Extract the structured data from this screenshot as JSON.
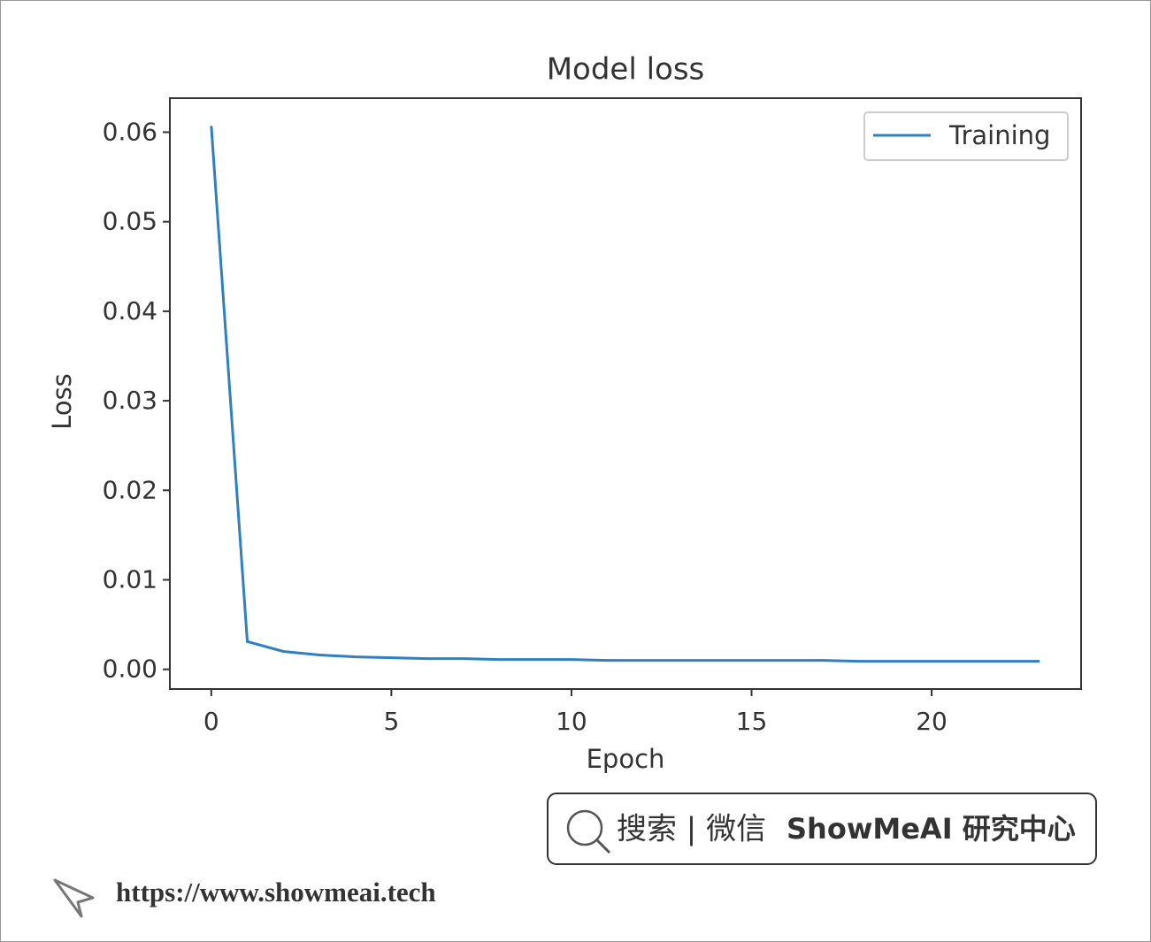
{
  "chart_data": {
    "type": "line",
    "title": "Model loss",
    "x_label": "Epoch",
    "y_label": "Loss",
    "x": [
      0,
      1,
      2,
      3,
      4,
      5,
      6,
      7,
      8,
      9,
      10,
      11,
      12,
      13,
      14,
      15,
      16,
      17,
      18,
      19,
      20,
      21,
      22,
      23
    ],
    "series": [
      {
        "name": "Training",
        "color": "#2f7fc1",
        "values": [
          0.0607,
          0.0031,
          0.002,
          0.0016,
          0.0014,
          0.0013,
          0.0012,
          0.0012,
          0.0011,
          0.0011,
          0.0011,
          0.001,
          0.001,
          0.001,
          0.001,
          0.001,
          0.001,
          0.001,
          0.0009,
          0.0009,
          0.0009,
          0.0009,
          0.0009,
          0.0009
        ]
      }
    ],
    "xlim": [
      -1.15,
      24.15
    ],
    "xticks": [
      0,
      5,
      10,
      15,
      20
    ],
    "ylim": [
      -0.0022,
      0.0638
    ],
    "yticks": [
      {
        "value": 0,
        "label": "0.00"
      },
      0.01,
      0.02,
      0.03,
      0.04,
      0.05,
      0.06
    ],
    "grid": false,
    "legend": "upper right"
  },
  "watermark": {
    "badge_search": "搜索 | 微信",
    "badge_brand": "ShowMeAI 研究中心",
    "url": "https://www.showmeai.tech"
  }
}
